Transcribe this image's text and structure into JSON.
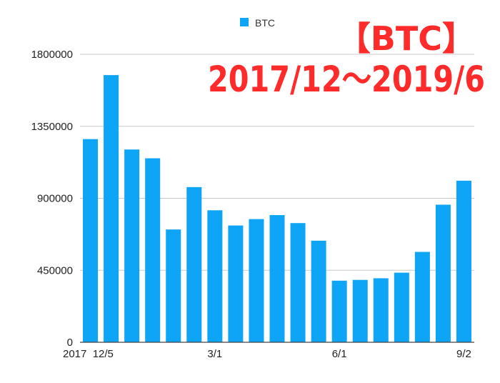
{
  "chart_data": {
    "type": "bar",
    "title_line1": "【BTC】",
    "title_line2": "2017/12〜2019/6",
    "xlabel": "",
    "ylabel": "",
    "ylim": [
      0,
      1800000
    ],
    "y_ticks": [
      "0",
      "450000",
      "900000",
      "1350000",
      "1800000"
    ],
    "x_tick_labels": [
      {
        "index": 0,
        "label": "2017  12/5"
      },
      {
        "index": 6,
        "label": "3/1"
      },
      {
        "index": 12,
        "label": "6/1"
      },
      {
        "index": 18,
        "label": "9/2"
      }
    ],
    "grid": true,
    "legend": "top-center",
    "series": [
      {
        "name": "BTC",
        "color": "#0ea5f7",
        "values": [
          1270000,
          1670000,
          1205000,
          1150000,
          705000,
          970000,
          825000,
          730000,
          770000,
          795000,
          745000,
          635000,
          385000,
          390000,
          400000,
          435000,
          565000,
          860000,
          1010000
        ]
      }
    ]
  }
}
